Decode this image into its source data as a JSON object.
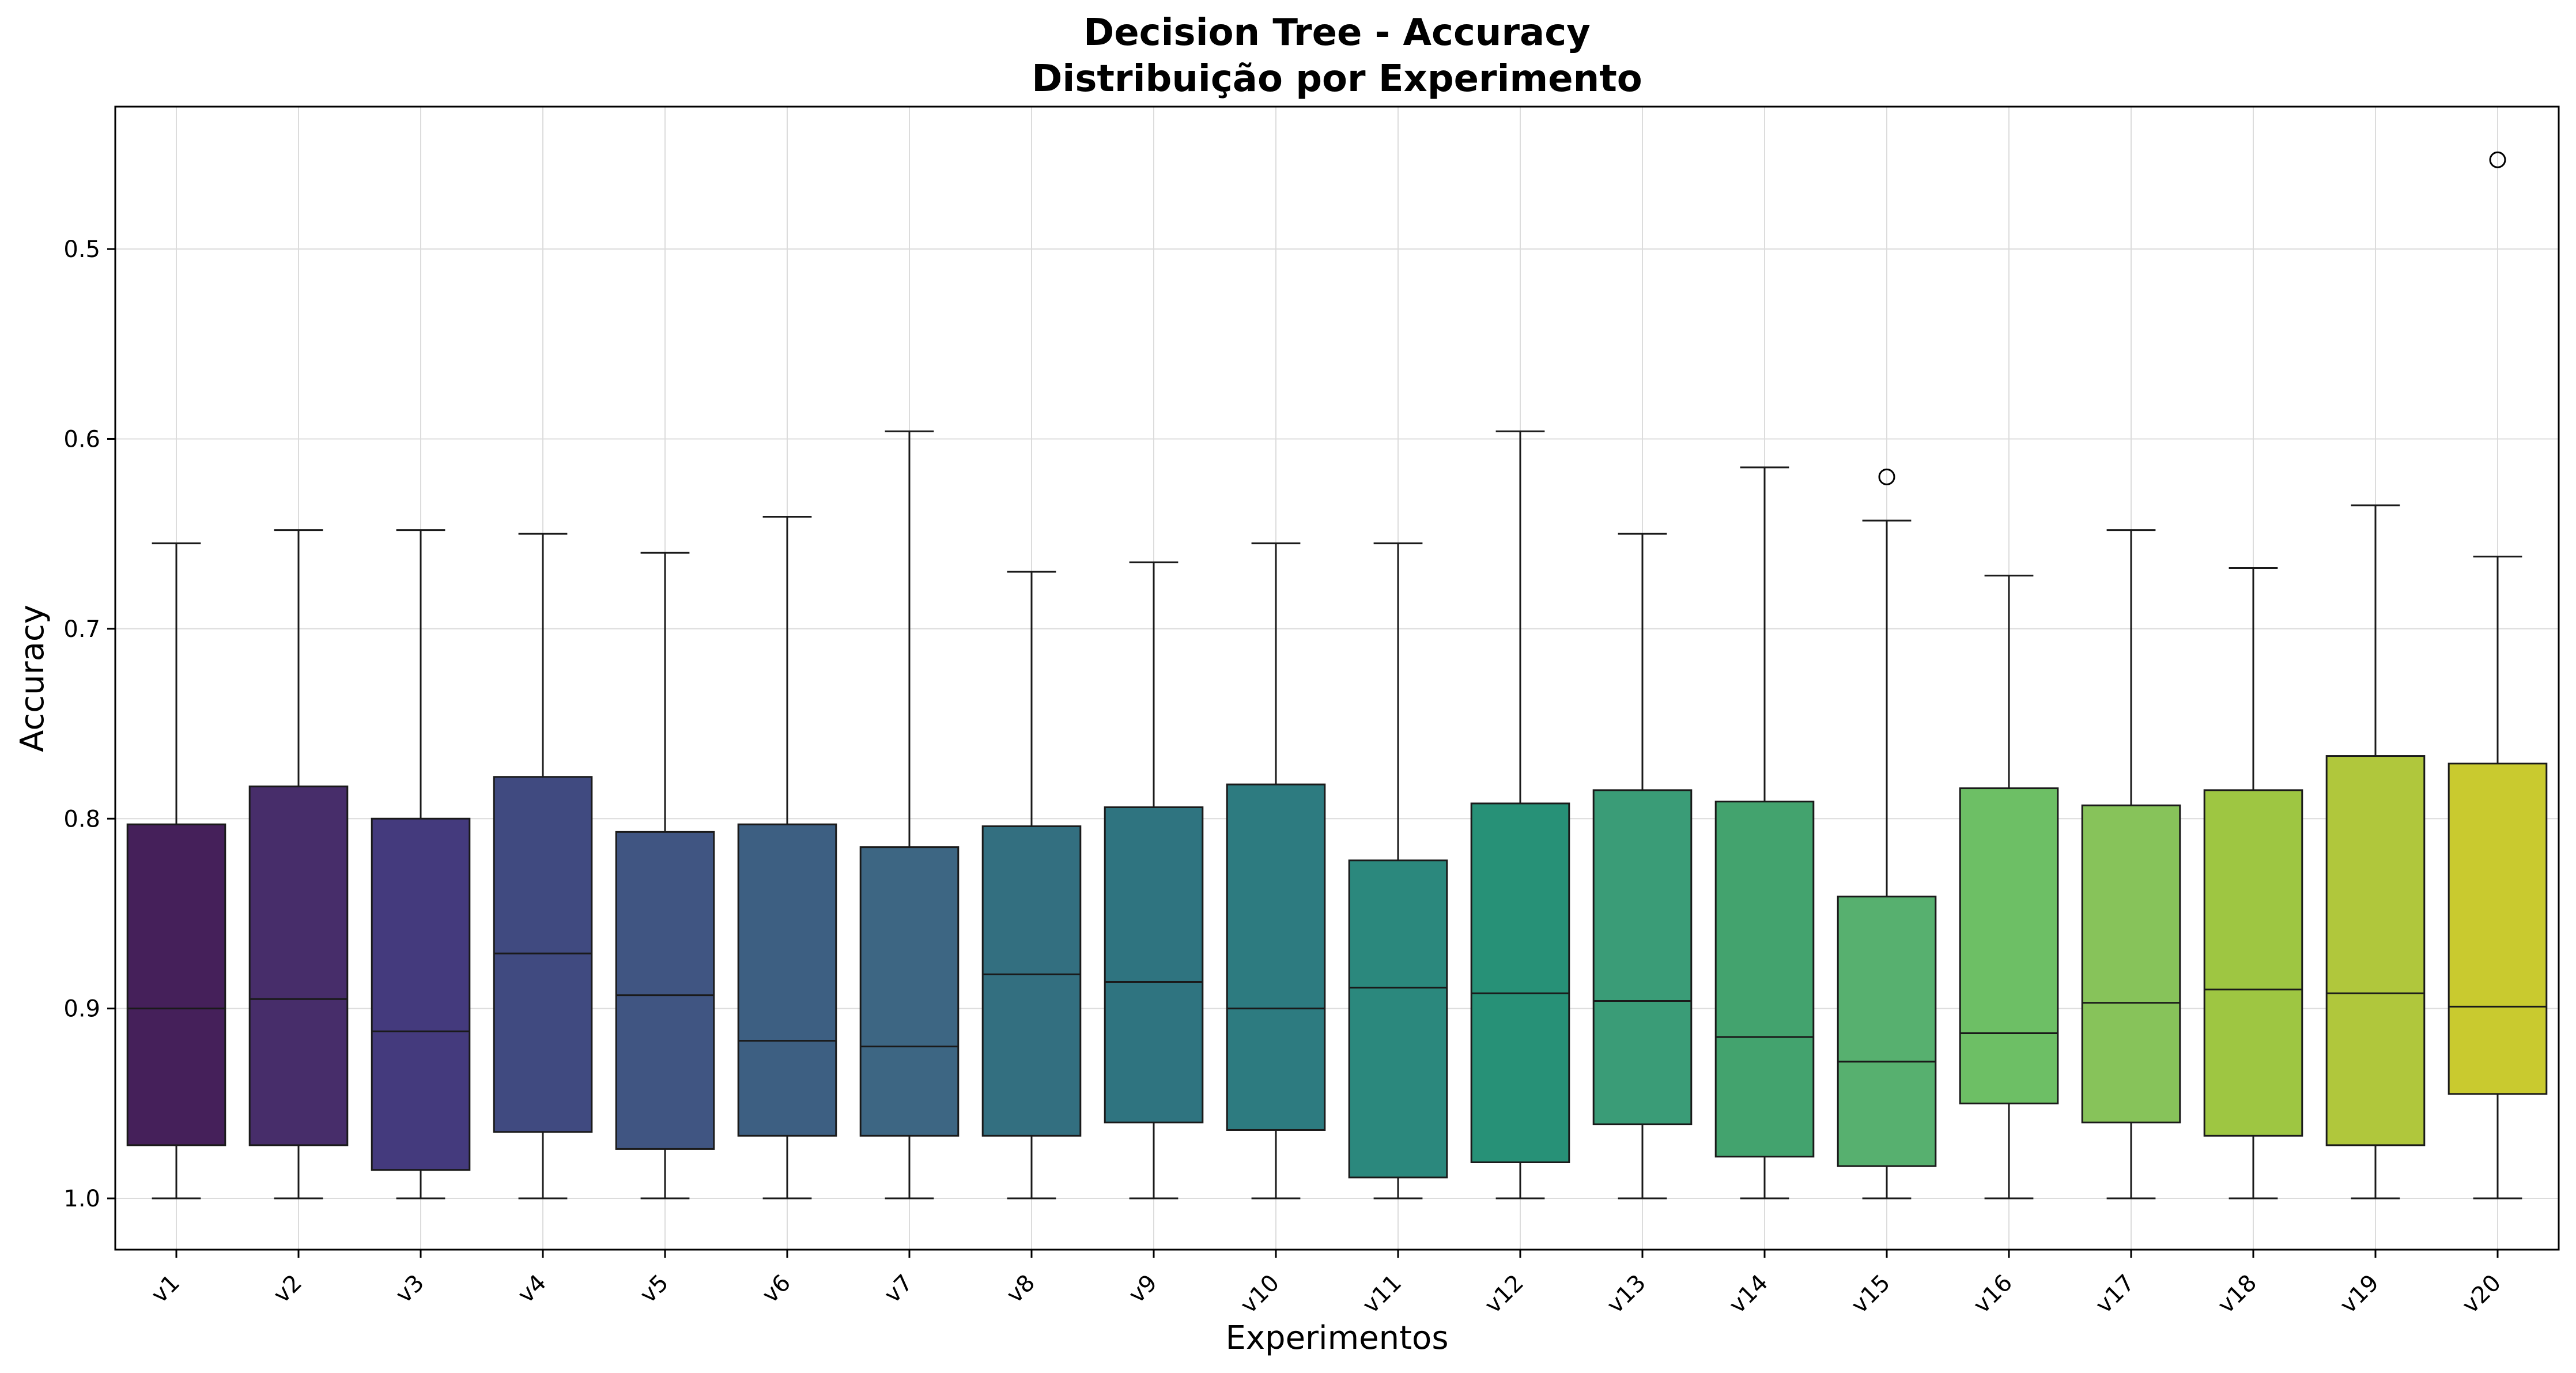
{
  "chart_data": {
    "type": "box",
    "title": "Decision Tree - Accuracy",
    "subtitle": "Distribuição por Experimento",
    "xlabel": "Experimentos",
    "ylabel": "Accuracy",
    "y_inverted": true,
    "ylim": [
      0.425,
      1.027
    ],
    "yticks": [
      "0.5",
      "0.6",
      "0.7",
      "0.8",
      "0.9",
      "1.0"
    ],
    "grid": true,
    "categories": [
      "v1",
      "v2",
      "v3",
      "v4",
      "v5",
      "v6",
      "v7",
      "v8",
      "v9",
      "v10",
      "v11",
      "v12",
      "v13",
      "v14",
      "v15",
      "v16",
      "v17",
      "v18",
      "v19",
      "v20"
    ],
    "colors": [
      "#45205a",
      "#472d6a",
      "#443a7d",
      "#404a80",
      "#405582",
      "#3d5f82",
      "#3d6683",
      "#336f80",
      "#2f7480",
      "#2d7b80",
      "#2b887d",
      "#279177",
      "#3a9c77",
      "#43a36e",
      "#57b06f",
      "#6dbf65",
      "#87c35a",
      "#9ec642",
      "#b0c73c",
      "#c9ca2f"
    ],
    "boxes": [
      {
        "whisker_low": 0.655,
        "q1": 0.803,
        "median": 0.9,
        "q3": 0.972,
        "whisker_high": 1.0,
        "outliers": []
      },
      {
        "whisker_low": 0.648,
        "q1": 0.783,
        "median": 0.895,
        "q3": 0.972,
        "whisker_high": 1.0,
        "outliers": []
      },
      {
        "whisker_low": 0.648,
        "q1": 0.8,
        "median": 0.912,
        "q3": 0.985,
        "whisker_high": 1.0,
        "outliers": []
      },
      {
        "whisker_low": 0.65,
        "q1": 0.778,
        "median": 0.871,
        "q3": 0.965,
        "whisker_high": 1.0,
        "outliers": []
      },
      {
        "whisker_low": 0.66,
        "q1": 0.807,
        "median": 0.893,
        "q3": 0.974,
        "whisker_high": 1.0,
        "outliers": []
      },
      {
        "whisker_low": 0.641,
        "q1": 0.803,
        "median": 0.917,
        "q3": 0.967,
        "whisker_high": 1.0,
        "outliers": []
      },
      {
        "whisker_low": 0.596,
        "q1": 0.815,
        "median": 0.92,
        "q3": 0.967,
        "whisker_high": 1.0,
        "outliers": []
      },
      {
        "whisker_low": 0.67,
        "q1": 0.804,
        "median": 0.882,
        "q3": 0.967,
        "whisker_high": 1.0,
        "outliers": []
      },
      {
        "whisker_low": 0.665,
        "q1": 0.794,
        "median": 0.886,
        "q3": 0.96,
        "whisker_high": 1.0,
        "outliers": []
      },
      {
        "whisker_low": 0.655,
        "q1": 0.782,
        "median": 0.9,
        "q3": 0.964,
        "whisker_high": 1.0,
        "outliers": []
      },
      {
        "whisker_low": 0.655,
        "q1": 0.822,
        "median": 0.889,
        "q3": 0.989,
        "whisker_high": 1.0,
        "outliers": []
      },
      {
        "whisker_low": 0.596,
        "q1": 0.792,
        "median": 0.892,
        "q3": 0.981,
        "whisker_high": 1.0,
        "outliers": []
      },
      {
        "whisker_low": 0.65,
        "q1": 0.785,
        "median": 0.896,
        "q3": 0.961,
        "whisker_high": 1.0,
        "outliers": []
      },
      {
        "whisker_low": 0.615,
        "q1": 0.791,
        "median": 0.915,
        "q3": 0.978,
        "whisker_high": 1.0,
        "outliers": []
      },
      {
        "whisker_low": 0.643,
        "q1": 0.841,
        "median": 0.928,
        "q3": 0.983,
        "whisker_high": 1.0,
        "outliers": [
          0.62
        ]
      },
      {
        "whisker_low": 0.672,
        "q1": 0.784,
        "median": 0.913,
        "q3": 0.95,
        "whisker_high": 1.0,
        "outliers": []
      },
      {
        "whisker_low": 0.648,
        "q1": 0.793,
        "median": 0.897,
        "q3": 0.96,
        "whisker_high": 1.0,
        "outliers": []
      },
      {
        "whisker_low": 0.668,
        "q1": 0.785,
        "median": 0.89,
        "q3": 0.967,
        "whisker_high": 1.0,
        "outliers": []
      },
      {
        "whisker_low": 0.635,
        "q1": 0.767,
        "median": 0.892,
        "q3": 0.972,
        "whisker_high": 1.0,
        "outliers": []
      },
      {
        "whisker_low": 0.662,
        "q1": 0.771,
        "median": 0.899,
        "q3": 0.945,
        "whisker_high": 1.0,
        "outliers": [
          0.453
        ]
      }
    ]
  }
}
